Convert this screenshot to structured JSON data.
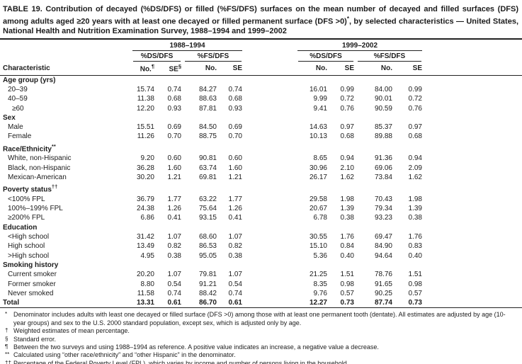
{
  "title": {
    "pre": "TABLE 19. Contribution of decayed (%DS/DFS) or filled (%FS/DFS) surfaces on the mean number of decayed and filled surfaces (DFS) among adults aged ≥20 years with at least one decayed or filled permanent surface (DFS >0)",
    "sup": "*",
    "post": ", by selected characteristics — United States, National Health and Nutrition Examination Survey, 1988–1994 and 1999–2002"
  },
  "header": {
    "characteristic": "Characteristic",
    "period1": "1988–1994",
    "period2": "1999–2002",
    "ds": "%DS/DFS",
    "fs": "%FS/DFS",
    "no_label": "No.",
    "no_sup": "¶",
    "se_label": "SE",
    "se_sup": "§",
    "no_plain": "No.",
    "se_plain": "SE"
  },
  "rows": [
    {
      "label": "Age group (yrs)",
      "section": true,
      "indent": 0,
      "values": []
    },
    {
      "label": "20–39",
      "indent": 1,
      "values": [
        "15.74",
        "0.74",
        "84.27",
        "0.74",
        "16.01",
        "0.99",
        "84.00",
        "0.99"
      ]
    },
    {
      "label": "40–59",
      "indent": 1,
      "values": [
        "11.38",
        "0.68",
        "88.63",
        "0.68",
        "9.99",
        "0.72",
        "90.01",
        "0.72"
      ]
    },
    {
      "label": "≥60",
      "indent": 2,
      "values": [
        "12.20",
        "0.93",
        "87.81",
        "0.93",
        "9.41",
        "0.76",
        "90.59",
        "0.76"
      ]
    },
    {
      "label": "Sex",
      "section": true,
      "indent": 0,
      "values": []
    },
    {
      "label": "Male",
      "indent": 1,
      "values": [
        "15.51",
        "0.69",
        "84.50",
        "0.69",
        "14.63",
        "0.97",
        "85.37",
        "0.97"
      ]
    },
    {
      "label": "Female",
      "indent": 1,
      "values": [
        "11.26",
        "0.70",
        "88.75",
        "0.70",
        "10.13",
        "0.68",
        "89.88",
        "0.68"
      ]
    },
    {
      "label": "Race/Ethnicity",
      "sup": "**",
      "section": true,
      "indent": 0,
      "values": []
    },
    {
      "label": "White, non-Hispanic",
      "indent": 1,
      "values": [
        "9.20",
        "0.60",
        "90.81",
        "0.60",
        "8.65",
        "0.94",
        "91.36",
        "0.94"
      ]
    },
    {
      "label": "Black, non-Hispanic",
      "indent": 1,
      "values": [
        "36.28",
        "1.60",
        "63.74",
        "1.60",
        "30.96",
        "2.10",
        "69.06",
        "2.09"
      ]
    },
    {
      "label": "Mexican-American",
      "indent": 1,
      "values": [
        "30.20",
        "1.21",
        "69.81",
        "1.21",
        "26.17",
        "1.62",
        "73.84",
        "1.62"
      ]
    },
    {
      "label": "Poverty status",
      "sup": "††",
      "section": true,
      "indent": 0,
      "values": []
    },
    {
      "label": "<100% FPL",
      "indent": 1,
      "values": [
        "36.79",
        "1.77",
        "63.22",
        "1.77",
        "29.58",
        "1.98",
        "70.43",
        "1.98"
      ]
    },
    {
      "label": "100%–199% FPL",
      "indent": 1,
      "values": [
        "24.38",
        "1.26",
        "75.64",
        "1.26",
        "20.67",
        "1.39",
        "79.34",
        "1.39"
      ]
    },
    {
      "label": "≥200% FPL",
      "indent": 1,
      "values": [
        "6.86",
        "0.41",
        "93.15",
        "0.41",
        "6.78",
        "0.38",
        "93.23",
        "0.38"
      ]
    },
    {
      "label": "Education",
      "section": true,
      "indent": 0,
      "values": []
    },
    {
      "label": "<High school",
      "indent": 1,
      "values": [
        "31.42",
        "1.07",
        "68.60",
        "1.07",
        "30.55",
        "1.76",
        "69.47",
        "1.76"
      ]
    },
    {
      "label": "High school",
      "indent": 1,
      "values": [
        "13.49",
        "0.82",
        "86.53",
        "0.82",
        "15.10",
        "0.84",
        "84.90",
        "0.83"
      ]
    },
    {
      "label": ">High school",
      "indent": 1,
      "values": [
        "4.95",
        "0.38",
        "95.05",
        "0.38",
        "5.36",
        "0.40",
        "94.64",
        "0.40"
      ]
    },
    {
      "label": "Smoking history",
      "section": true,
      "indent": 0,
      "values": []
    },
    {
      "label": "Current smoker",
      "indent": 1,
      "values": [
        "20.20",
        "1.07",
        "79.81",
        "1.07",
        "21.25",
        "1.51",
        "78.76",
        "1.51"
      ]
    },
    {
      "label": "Former smoker",
      "indent": 1,
      "values": [
        "8.80",
        "0.54",
        "91.21",
        "0.54",
        "8.35",
        "0.98",
        "91.65",
        "0.98"
      ]
    },
    {
      "label": "Never smoked",
      "indent": 1,
      "values": [
        "11.58",
        "0.74",
        "88.42",
        "0.74",
        "9.76",
        "0.57",
        "90.25",
        "0.57"
      ]
    },
    {
      "label": "Total",
      "bold": true,
      "indent": 0,
      "values": [
        "13.31",
        "0.61",
        "86.70",
        "0.61",
        "12.27",
        "0.73",
        "87.74",
        "0.73"
      ]
    }
  ],
  "footnotes": [
    {
      "sym": "*",
      "text": "Denominator includes adults with least one decayed or filled surface (DFS >0) among those with at least one permanent tooth (dentate).  All estimates are adjusted by age (10-year groups) and sex to the U.S. 2000 standard population, except sex, which is adjusted only by age."
    },
    {
      "sym": "†",
      "text": "Weighted estimates of mean percentage."
    },
    {
      "sym": "§",
      "text": "Standard error."
    },
    {
      "sym": "¶",
      "text": "Between the two surveys and using 1988–1994 as reference. A positive value indicates an increase, a negative value a decrease."
    },
    {
      "sym": "**",
      "text": "Calculated using “other race/ethnicity” and “other Hispanic” in the denominator."
    },
    {
      "sym": "††",
      "text": "Percentage of the Federal Poverty Level (FPL), which varies by income and number of persons living in the household."
    }
  ],
  "colors": {
    "text": "#1c1c1c",
    "background": "#ffffff",
    "rule": "#222222"
  }
}
